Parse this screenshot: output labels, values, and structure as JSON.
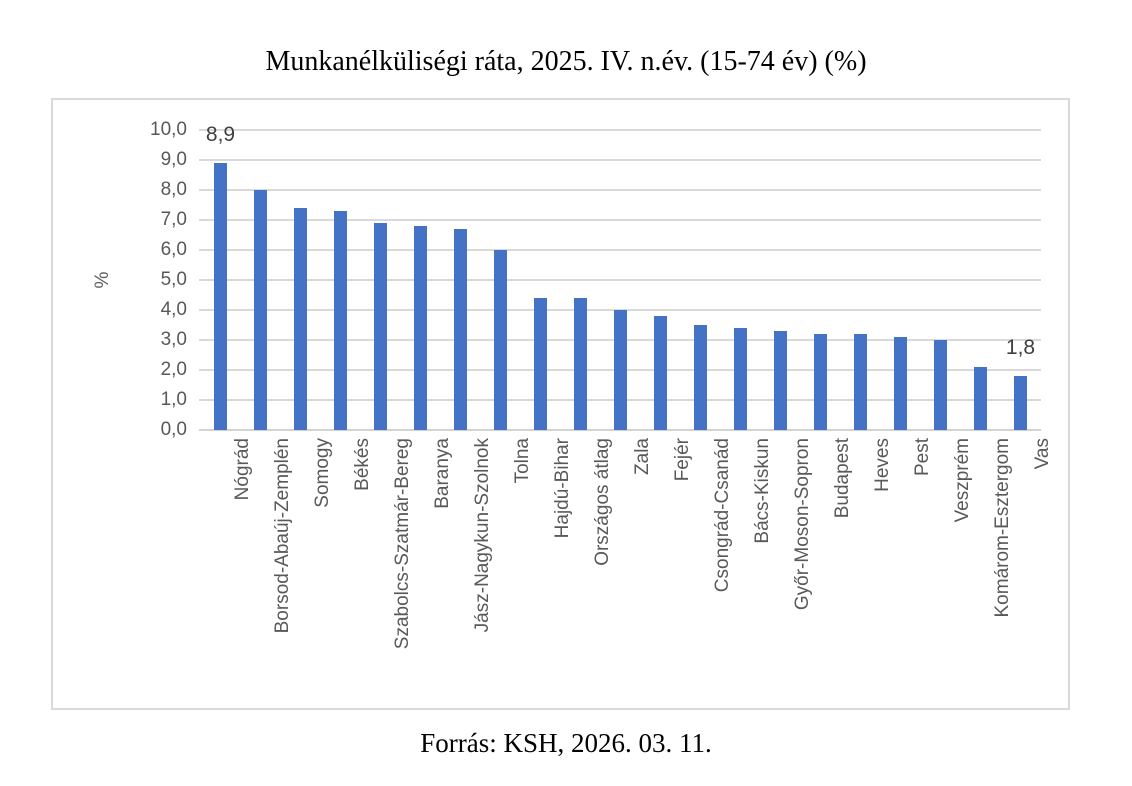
{
  "page": {
    "title": "Munkanélküliségi ráta, 2025. IV. n.év. (15-74 év) (%)",
    "source": "Forrás: KSH, 2026. 03. 11."
  },
  "chart_data": {
    "type": "bar",
    "title": "Munkanélküliségi ráta, 2025. IV. n.év. (15-74 év) (%)",
    "xlabel": "",
    "ylabel": "%",
    "ylim": [
      0,
      10
    ],
    "ytick_step": 1,
    "ytick_labels": [
      "0,0",
      "1,0",
      "2,0",
      "3,0",
      "4,0",
      "5,0",
      "6,0",
      "7,0",
      "8,0",
      "9,0",
      "10,0"
    ],
    "grid": true,
    "legend": "none",
    "bar_color": "#4472C4",
    "gridline_color": "#d9d9d9",
    "label_color": "#595959",
    "categories": [
      "Nógrád",
      "Borsod-Abaúj-Zemplén",
      "Somogy",
      "Békés",
      "Szabolcs-Szatmár-Bereg",
      "Baranya",
      "Jász-Nagykun-Szolnok",
      "Tolna",
      "Hajdú-Bihar",
      "Országos átlag",
      "Zala",
      "Fejér",
      "Csongrád-Csanád",
      "Bács-Kiskun",
      "Győr-Moson-Sopron",
      "Budapest",
      "Heves",
      "Pest",
      "Veszprém",
      "Komárom-Esztergom",
      "Vas"
    ],
    "values": [
      8.9,
      8.0,
      7.4,
      7.3,
      6.9,
      6.8,
      6.7,
      6.0,
      4.4,
      4.4,
      4.0,
      3.8,
      3.5,
      3.4,
      3.3,
      3.2,
      3.2,
      3.1,
      3.0,
      2.1,
      1.8
    ],
    "data_labels": [
      {
        "index": 0,
        "text": "8,9"
      },
      {
        "index": 20,
        "text": "1,8"
      }
    ]
  }
}
